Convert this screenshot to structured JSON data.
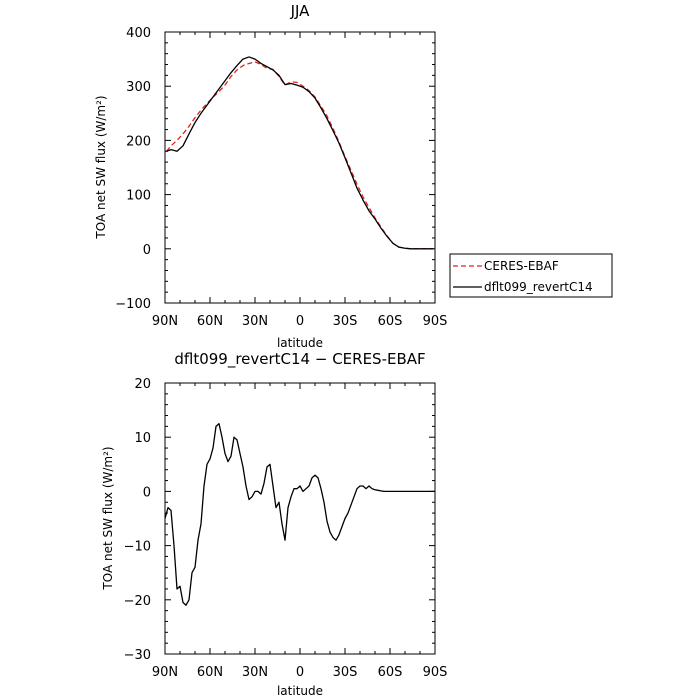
{
  "chart_data": [
    {
      "type": "line",
      "title": "JJA",
      "xlabel": "latitude",
      "ylabel": "TOA net SW flux (W/m²)",
      "xlim": [
        90,
        -90
      ],
      "ylim": [
        -100,
        400
      ],
      "x_ticks": [
        90,
        60,
        30,
        0,
        -30,
        -60,
        -90
      ],
      "x_tick_labels": [
        "90N",
        "60N",
        "30N",
        "0",
        "30S",
        "60S",
        "90S"
      ],
      "y_ticks": [
        -100,
        0,
        100,
        200,
        300,
        400
      ],
      "y_tick_labels": [
        "−100",
        "0",
        "100",
        "200",
        "300",
        "400"
      ],
      "legend": "right",
      "series": [
        {
          "name": "CERES-EBAF",
          "color": "#e02020",
          "dash": "dashed",
          "x": [
            89,
            86,
            82,
            78,
            74,
            70,
            66,
            62,
            58,
            54,
            50,
            46,
            42,
            38,
            34,
            30,
            26,
            22,
            18,
            14,
            10,
            6,
            2,
            -2,
            -6,
            -10,
            -14,
            -18,
            -22,
            -26,
            -30,
            -34,
            -38,
            -42,
            -46,
            -50,
            -54,
            -58,
            -62,
            -66,
            -70,
            -74,
            -78,
            -82,
            -86,
            -89
          ],
          "y": [
            180,
            190,
            200,
            212,
            226,
            242,
            256,
            268,
            280,
            290,
            302,
            318,
            330,
            338,
            342,
            345,
            340,
            333,
            331,
            318,
            302,
            308,
            307,
            300,
            292,
            280,
            263,
            245,
            222,
            197,
            170,
            145,
            119,
            96,
            76,
            57,
            40,
            24,
            10,
            3,
            1,
            0,
            0,
            0,
            0,
            0
          ]
        },
        {
          "name": "dflt099_revertC14",
          "color": "#000000",
          "dash": "solid",
          "x": [
            89,
            86,
            82,
            78,
            74,
            70,
            66,
            62,
            58,
            54,
            50,
            46,
            42,
            38,
            34,
            30,
            26,
            22,
            18,
            14,
            10,
            6,
            2,
            -2,
            -6,
            -10,
            -14,
            -18,
            -22,
            -26,
            -30,
            -34,
            -38,
            -42,
            -46,
            -50,
            -54,
            -58,
            -62,
            -66,
            -70,
            -74,
            -78,
            -82,
            -86,
            -89
          ],
          "y": [
            180,
            183,
            180,
            190,
            212,
            233,
            250,
            265,
            280,
            295,
            310,
            325,
            338,
            350,
            354,
            350,
            342,
            336,
            330,
            320,
            303,
            305,
            302,
            298,
            290,
            278,
            260,
            240,
            218,
            195,
            168,
            140,
            112,
            90,
            70,
            55,
            38,
            23,
            10,
            3,
            1,
            0,
            0,
            0,
            0,
            0
          ]
        }
      ]
    },
    {
      "type": "line",
      "title": "dflt099_revertC14 − CERES-EBAF",
      "xlabel": "latitude",
      "ylabel": "TOA net SW flux (W/m²)",
      "xlim": [
        90,
        -90
      ],
      "ylim": [
        -30,
        20
      ],
      "x_ticks": [
        90,
        60,
        30,
        0,
        -30,
        -60,
        -90
      ],
      "x_tick_labels": [
        "90N",
        "60N",
        "30N",
        "0",
        "30S",
        "60S",
        "90S"
      ],
      "y_ticks": [
        -30,
        -20,
        -10,
        0,
        10,
        20
      ],
      "y_tick_labels": [
        "−30",
        "−20",
        "−10",
        "0",
        "10",
        "20"
      ],
      "series": [
        {
          "color": "#000000",
          "dash": "solid",
          "x": [
            90,
            88,
            86,
            84,
            82,
            80,
            78,
            76,
            74,
            72,
            70,
            68,
            66,
            64,
            62,
            60,
            58,
            56,
            54,
            52,
            50,
            48,
            46,
            44,
            42,
            40,
            38,
            36,
            34,
            32,
            30,
            28,
            26,
            24,
            22,
            20,
            18,
            16,
            14,
            12,
            10,
            8,
            6,
            4,
            2,
            0,
            -2,
            -4,
            -6,
            -8,
            -10,
            -12,
            -14,
            -16,
            -18,
            -20,
            -22,
            -24,
            -26,
            -28,
            -30,
            -32,
            -34,
            -36,
            -38,
            -40,
            -42,
            -44,
            -46,
            -48,
            -50,
            -52,
            -54,
            -56,
            -58,
            -60,
            -62,
            -64,
            -66,
            -68,
            -70,
            -72,
            -74,
            -76,
            -78,
            -80,
            -82,
            -84,
            -86,
            -88,
            -90
          ],
          "y": [
            -5,
            -3,
            -3.5,
            -10,
            -18,
            -17.5,
            -20.5,
            -21,
            -20,
            -15,
            -14,
            -9,
            -6,
            1,
            5,
            6,
            8,
            12,
            12.5,
            10,
            7,
            5.5,
            6.5,
            10,
            9.5,
            7,
            4.5,
            1,
            -1.5,
            -1,
            0,
            0,
            -0.5,
            1.5,
            4.5,
            5,
            1,
            -3,
            -2,
            -6,
            -9,
            -3,
            -1,
            0.5,
            0.5,
            1,
            0,
            0.5,
            1,
            2.5,
            3,
            2.5,
            0.5,
            -2,
            -5.5,
            -7.5,
            -8.5,
            -9,
            -8,
            -6.5,
            -5,
            -4,
            -2.5,
            -1,
            0.5,
            1,
            1,
            0.5,
            1,
            0.5,
            0.3,
            0.2,
            0.1,
            0,
            0,
            0,
            0,
            0,
            0,
            0,
            0,
            0,
            0,
            0,
            0,
            0,
            0,
            0,
            0,
            0,
            0
          ]
        }
      ]
    }
  ]
}
